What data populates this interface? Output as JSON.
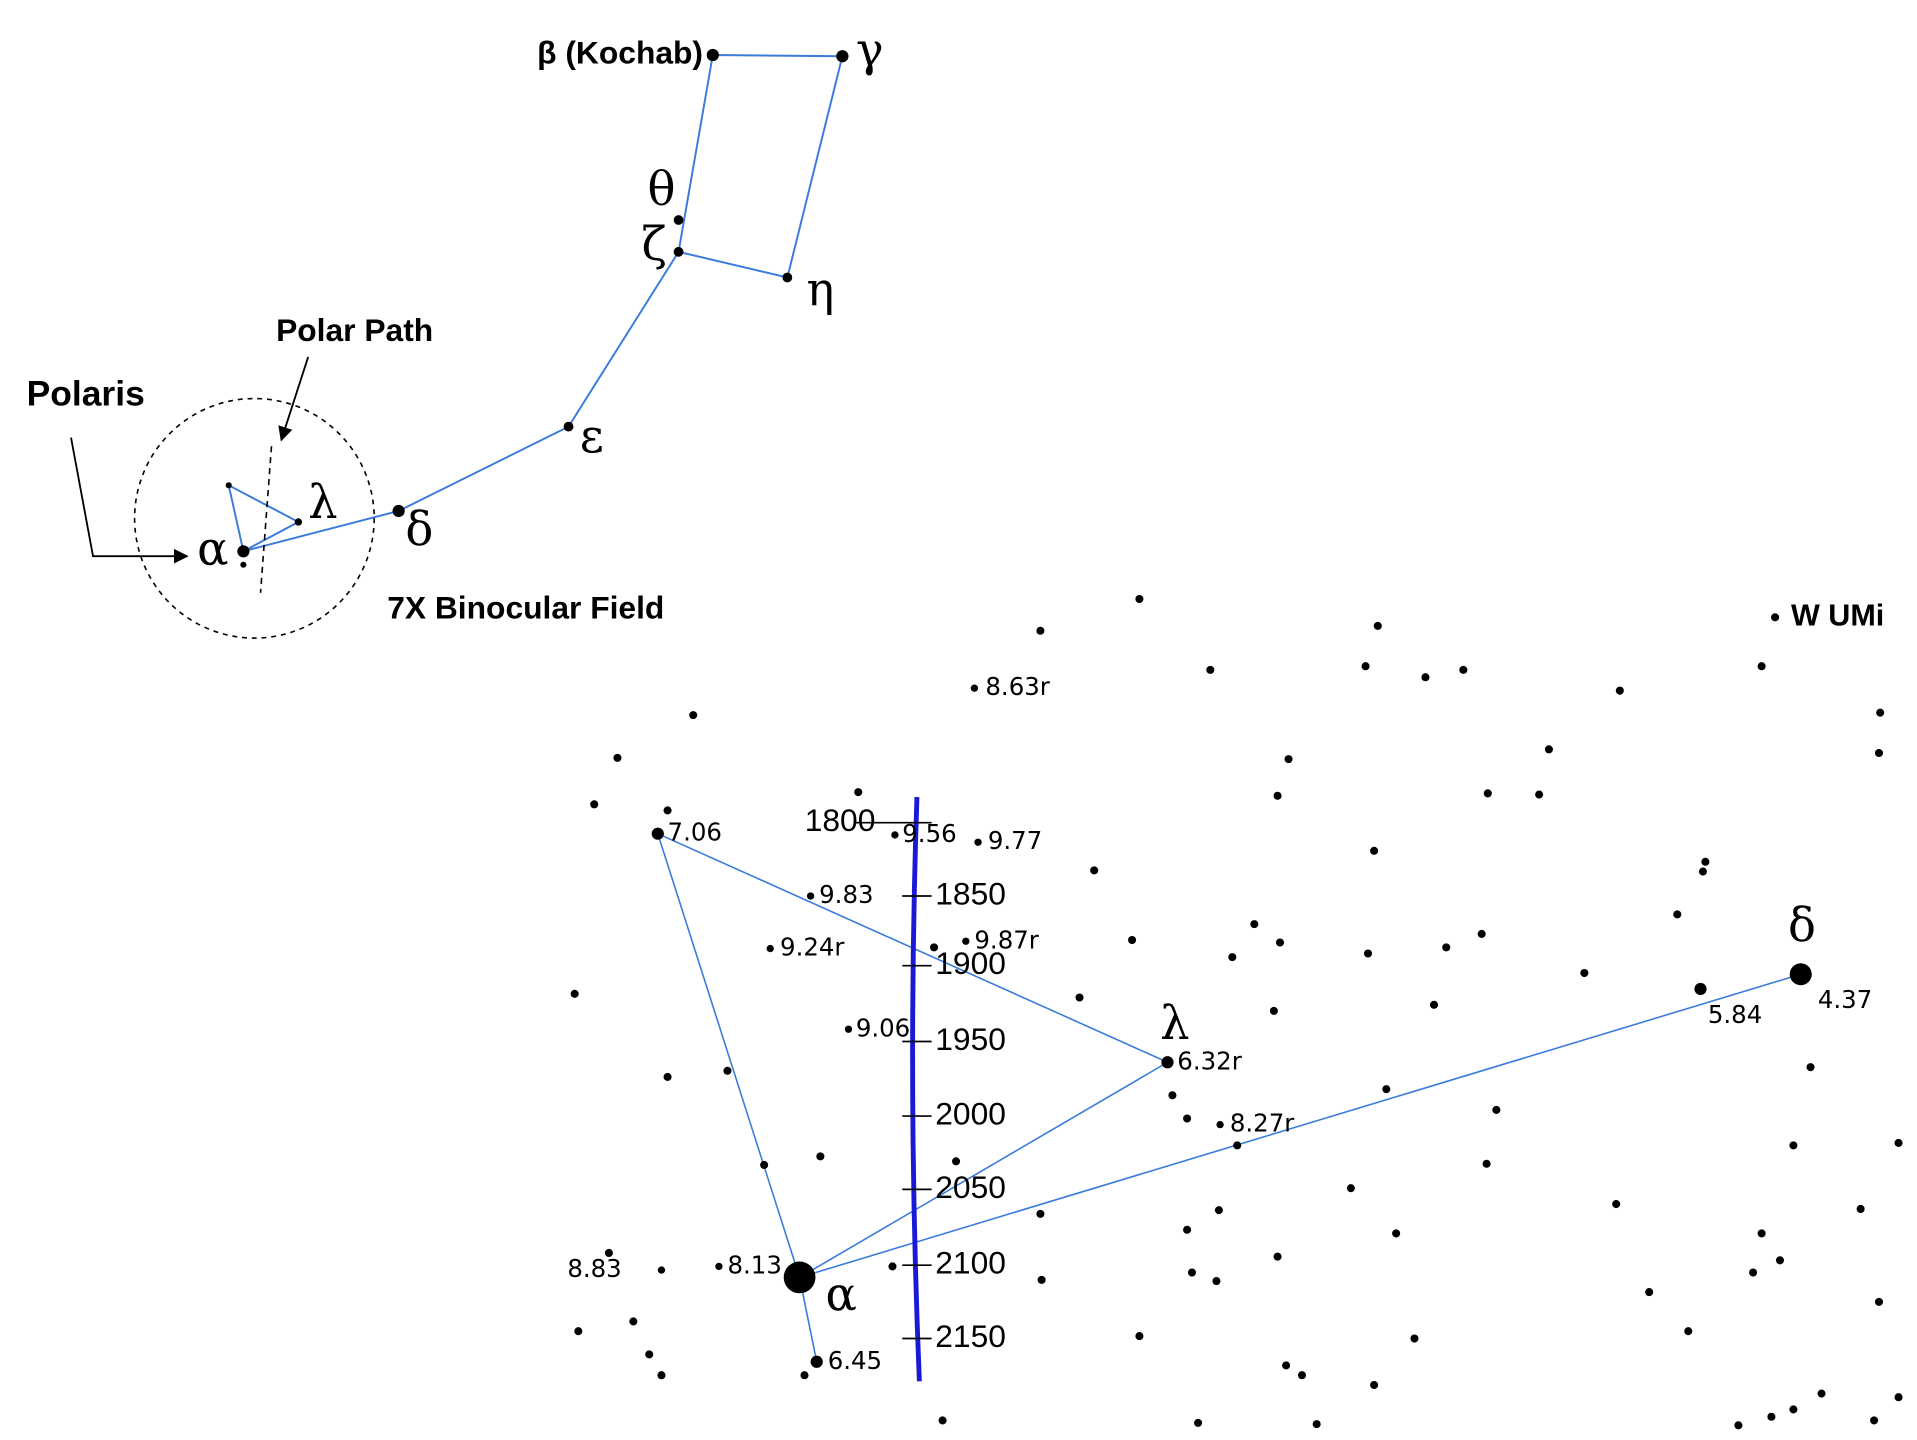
{
  "finder": {
    "polaris": "Polaris",
    "polar_path": "Polar Path",
    "binocular_field": "7X Binocular Field",
    "stars": [
      "β (Kochab)",
      "γ",
      "θ",
      "ζ",
      "η",
      "ε",
      "δ",
      "λ",
      "α"
    ]
  },
  "chart": {
    "variable": "W UMi",
    "stars": [
      "α",
      "λ",
      "δ"
    ],
    "magnitudes": [
      "8.63r",
      "9.56",
      "9.77",
      "7.06",
      "9.83",
      "9.87r",
      "9.24r",
      "9.06",
      "6.32r",
      "8.27r",
      "5.84",
      "4.37",
      "8.83",
      "8.13",
      "6.45"
    ],
    "years": [
      1800,
      1850,
      1900,
      1950,
      2000,
      2050,
      2100,
      2150
    ]
  }
}
